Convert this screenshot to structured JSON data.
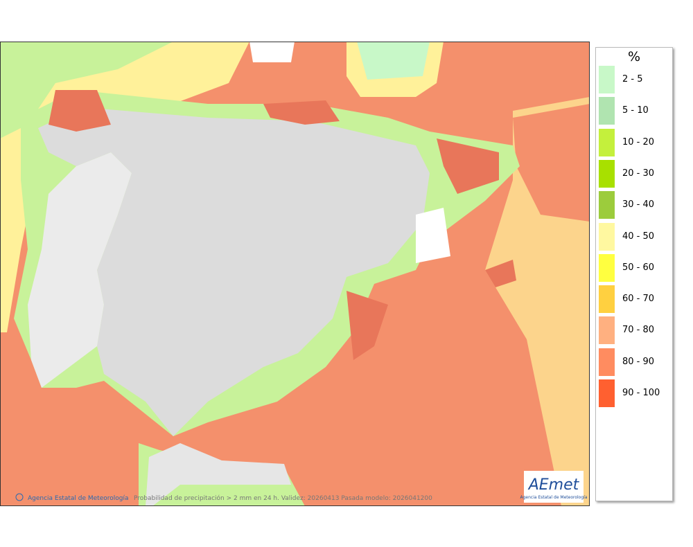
{
  "legend": {
    "title": "%",
    "items": [
      {
        "range": "2 - 5",
        "color": "#c8f8c8"
      },
      {
        "range": "5 - 10",
        "color": "#b0e4b0"
      },
      {
        "range": "10 - 20",
        "color": "#c4f03c"
      },
      {
        "range": "20 - 30",
        "color": "#a8e000"
      },
      {
        "range": "30 - 40",
        "color": "#9ccc3c"
      },
      {
        "range": "40 - 50",
        "color": "#fff8a0"
      },
      {
        "range": "50 - 60",
        "color": "#ffff40"
      },
      {
        "range": "60 - 70",
        "color": "#ffd040"
      },
      {
        "range": "70 - 80",
        "color": "#ffb080"
      },
      {
        "range": "80 - 90",
        "color": "#ff8c60"
      },
      {
        "range": "90 - 100",
        "color": "#ff6030"
      }
    ]
  },
  "footer": {
    "credit": "Agencia Estatal de Meteorología",
    "caption": "Probabilidad de precipitación > 2 mm en 24 h. Validez: 20260413 Pasada modelo: 2026041200"
  },
  "logo": {
    "name": "AEmet",
    "subtitle": "Agencia Estatal de Meteorología"
  }
}
